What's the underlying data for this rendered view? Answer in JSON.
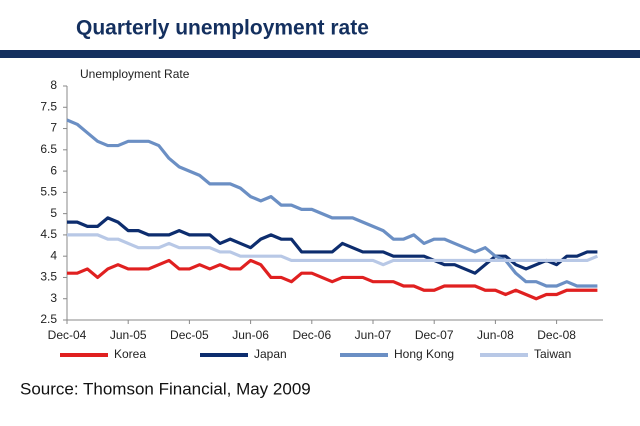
{
  "chart_data": {
    "type": "line",
    "title": "Quarterly unemployment rate",
    "ylabel": "Unemployment Rate",
    "source": "Source: Thomson Financial, May 2009",
    "categories": [
      "Dec-04",
      null,
      null,
      null,
      null,
      null,
      "Jun-05",
      null,
      null,
      null,
      null,
      null,
      "Dec-05",
      null,
      null,
      null,
      null,
      null,
      "Jun-06",
      null,
      null,
      null,
      null,
      null,
      "Dec-06",
      null,
      null,
      null,
      null,
      null,
      "Jun-07",
      null,
      null,
      null,
      null,
      null,
      "Dec-07",
      null,
      null,
      null,
      null,
      null,
      "Jun-08",
      null,
      null,
      null,
      null,
      null,
      "Dec-08",
      null,
      null,
      null,
      null
    ],
    "series": [
      {
        "name": "Korea",
        "color": "#e02020",
        "values": [
          3.6,
          3.6,
          3.7,
          3.5,
          3.7,
          3.8,
          3.7,
          3.7,
          3.7,
          3.8,
          3.9,
          3.7,
          3.7,
          3.8,
          3.7,
          3.8,
          3.7,
          3.7,
          3.9,
          3.8,
          3.5,
          3.5,
          3.4,
          3.6,
          3.6,
          3.5,
          3.4,
          3.5,
          3.5,
          3.5,
          3.4,
          3.4,
          3.4,
          3.3,
          3.3,
          3.2,
          3.2,
          3.3,
          3.3,
          3.3,
          3.3,
          3.2,
          3.2,
          3.1,
          3.2,
          3.1,
          3.0,
          3.1,
          3.1,
          3.2,
          3.2,
          3.2,
          3.2
        ]
      },
      {
        "name": "Japan",
        "color": "#0d2d6e",
        "values": [
          4.8,
          4.8,
          4.7,
          4.7,
          4.9,
          4.8,
          4.6,
          4.6,
          4.5,
          4.5,
          4.5,
          4.6,
          4.5,
          4.5,
          4.5,
          4.3,
          4.4,
          4.3,
          4.2,
          4.4,
          4.5,
          4.4,
          4.4,
          4.1,
          4.1,
          4.1,
          4.1,
          4.3,
          4.2,
          4.1,
          4.1,
          4.1,
          4.0,
          4.0,
          4.0,
          4.0,
          3.9,
          3.8,
          3.8,
          3.7,
          3.6,
          3.8,
          4.0,
          4.0,
          3.8,
          3.7,
          3.8,
          3.9,
          3.8,
          4.0,
          4.0,
          4.1,
          4.1
        ]
      },
      {
        "name": "Hong Kong",
        "color": "#6b8fc4",
        "values": [
          7.2,
          7.1,
          6.9,
          6.7,
          6.6,
          6.6,
          6.7,
          6.7,
          6.7,
          6.6,
          6.3,
          6.1,
          6.0,
          5.9,
          5.7,
          5.7,
          5.7,
          5.6,
          5.4,
          5.3,
          5.4,
          5.2,
          5.2,
          5.1,
          5.1,
          5.0,
          4.9,
          4.9,
          4.9,
          4.8,
          4.7,
          4.6,
          4.4,
          4.4,
          4.5,
          4.3,
          4.4,
          4.4,
          4.3,
          4.2,
          4.1,
          4.2,
          4.0,
          3.9,
          3.6,
          3.4,
          3.4,
          3.3,
          3.3,
          3.4,
          3.3,
          3.3,
          3.3
        ]
      },
      {
        "name": "Taiwan",
        "color": "#b8c8e6",
        "values": [
          4.5,
          4.5,
          4.5,
          4.5,
          4.4,
          4.4,
          4.3,
          4.2,
          4.2,
          4.2,
          4.3,
          4.2,
          4.2,
          4.2,
          4.2,
          4.1,
          4.1,
          4.0,
          4.0,
          4.0,
          4.0,
          4.0,
          3.9,
          3.9,
          3.9,
          3.9,
          3.9,
          3.9,
          3.9,
          3.9,
          3.9,
          3.8,
          3.9,
          3.9,
          3.9,
          3.9,
          3.9,
          3.9,
          3.9,
          3.9,
          3.9,
          3.9,
          3.9,
          3.9,
          3.9,
          3.9,
          3.9,
          3.9,
          3.9,
          3.9,
          3.9,
          3.9,
          4.0
        ]
      }
    ],
    "ylim": [
      2.5,
      8
    ],
    "yticks": [
      2.5,
      3,
      3.5,
      4,
      4.5,
      5,
      5.5,
      6,
      6.5,
      7,
      7.5,
      8
    ],
    "grid": false
  }
}
